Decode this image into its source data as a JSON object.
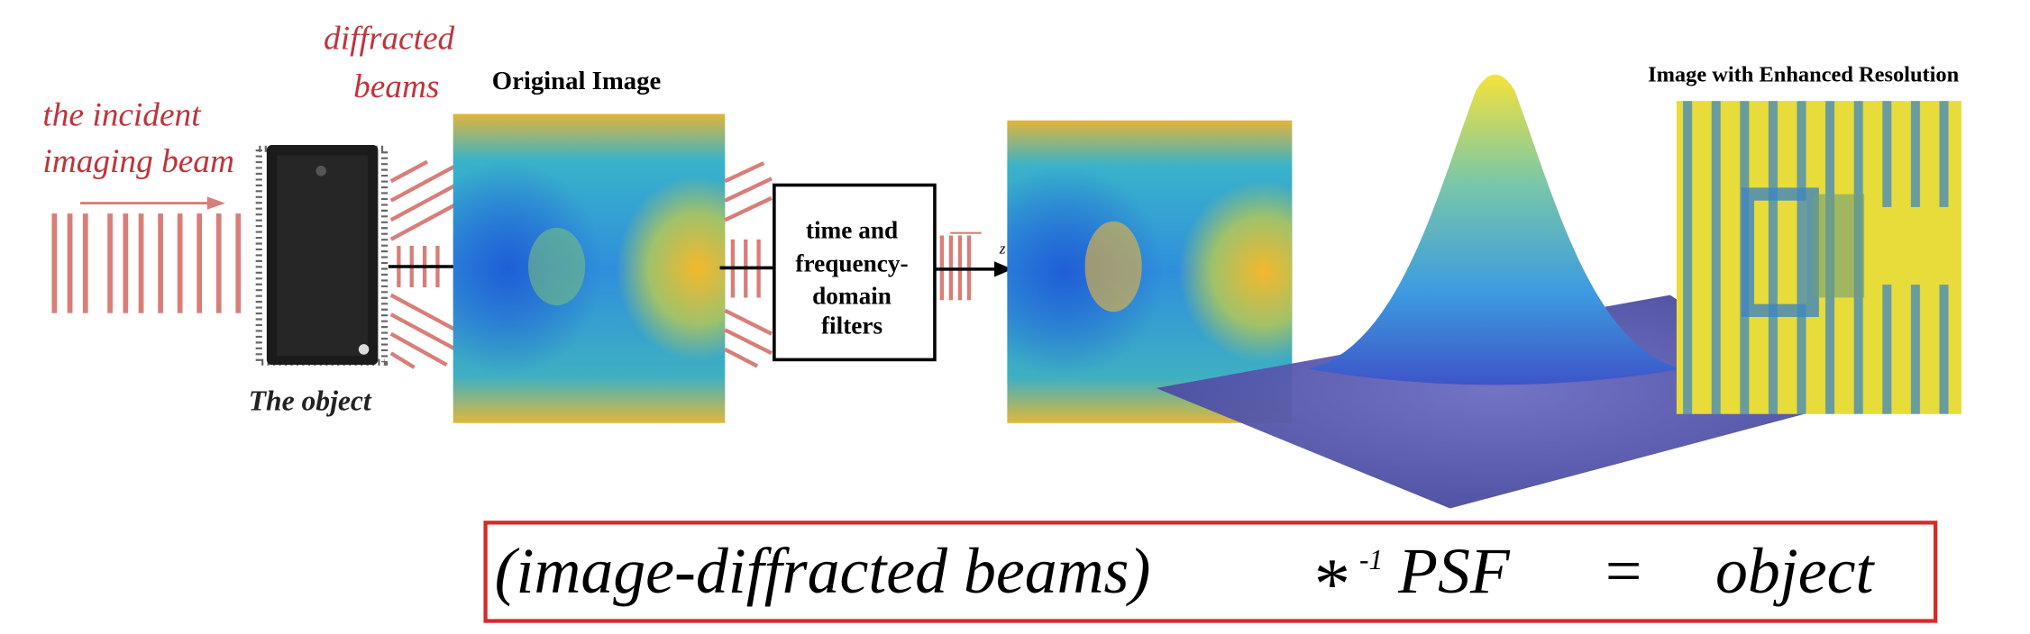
{
  "incident_label": [
    "the incident",
    "imaging beam"
  ],
  "diffracted_label": [
    "diffracted",
    "beams"
  ],
  "object_label": "The object",
  "original_image_label": "Original Image",
  "filter_box": [
    "time and",
    "frequency-",
    "domain",
    "filters"
  ],
  "axis_label": "z",
  "enhanced_label": "Image with Enhanced Resolution",
  "formula": {
    "left": "(image-diffracted beams)",
    "operator": "*",
    "exponent": "-1",
    "kernel": "PSF",
    "equals": "=",
    "right": "object"
  }
}
